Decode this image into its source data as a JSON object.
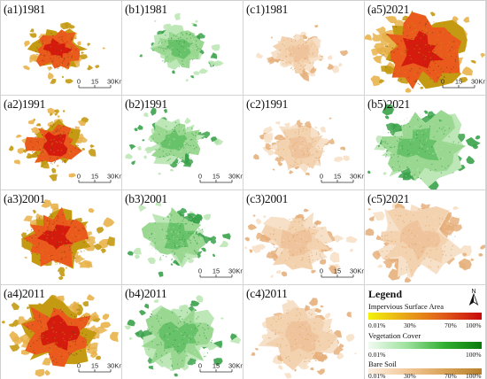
{
  "panels": [
    {
      "id": "a1",
      "label": "(a1)1981",
      "type": "impervious",
      "extent": 0.45,
      "seed": 11,
      "scalebar": true
    },
    {
      "id": "b1",
      "label": "(b1)1981",
      "type": "vegetation",
      "extent": 0.42,
      "seed": 12,
      "scalebar": false
    },
    {
      "id": "c1",
      "label": "(c1)1981",
      "type": "baresoil",
      "extent": 0.42,
      "seed": 13,
      "scalebar": false
    },
    {
      "id": "a5",
      "label": "(a5)2021",
      "type": "impervious",
      "extent": 1.0,
      "seed": 14,
      "scalebar": true
    },
    {
      "id": "a2",
      "label": "(a2)1991",
      "type": "impervious",
      "extent": 0.5,
      "seed": 21,
      "scalebar": true
    },
    {
      "id": "b2",
      "label": "(b2)1991",
      "type": "vegetation",
      "extent": 0.52,
      "seed": 22,
      "scalebar": true
    },
    {
      "id": "c2",
      "label": "(c2)1991",
      "type": "baresoil",
      "extent": 0.52,
      "seed": 23,
      "scalebar": true
    },
    {
      "id": "b5",
      "label": "(b5)2021",
      "type": "vegetation",
      "extent": 0.98,
      "seed": 24,
      "scalebar": false
    },
    {
      "id": "a3",
      "label": "(a3)2001",
      "type": "impervious",
      "extent": 0.72,
      "seed": 31,
      "scalebar": false
    },
    {
      "id": "b3",
      "label": "(b3)2001",
      "type": "vegetation",
      "extent": 0.68,
      "seed": 32,
      "scalebar": true
    },
    {
      "id": "c3",
      "label": "(c3)2001",
      "type": "baresoil",
      "extent": 0.7,
      "seed": 33,
      "scalebar": true
    },
    {
      "id": "c5",
      "label": "(c5)2021",
      "type": "baresoil",
      "extent": 0.98,
      "seed": 34,
      "scalebar": false
    },
    {
      "id": "a4",
      "label": "(a4)2011",
      "type": "impervious",
      "extent": 0.86,
      "seed": 41,
      "scalebar": true
    },
    {
      "id": "b4",
      "label": "(b4)2011",
      "type": "vegetation",
      "extent": 0.84,
      "seed": 42,
      "scalebar": true
    },
    {
      "id": "c4",
      "label": "(c4)2011",
      "type": "baresoil",
      "extent": 0.84,
      "seed": 43,
      "scalebar": false
    }
  ],
  "scalebar": {
    "ticks": [
      "0",
      "15",
      "30Km"
    ]
  },
  "legend": {
    "title": "Legend",
    "north": "N",
    "categories": [
      {
        "label": "Impervious Surface Area",
        "ramp": [
          "#f2f20a",
          "#e8a418",
          "#e05a1a",
          "#c80a0a"
        ],
        "ticks": [
          "0.01%",
          "30%",
          "70%",
          "100%"
        ]
      },
      {
        "label": "Vegetation Cover",
        "ramp": [
          "#f2fbf2",
          "#9fe29f",
          "#33b033",
          "#0a7a0a"
        ],
        "ticks": [
          "0.01%",
          "100%"
        ]
      },
      {
        "label": "Bare Soil",
        "ramp": [
          "#fbeee0",
          "#f3c99b",
          "#d9a35a",
          "#b7822e"
        ],
        "ticks": [
          "0.01%",
          "30%",
          "70%",
          "100%"
        ]
      }
    ]
  },
  "palettes": {
    "impervious": {
      "base": "#e95a1c",
      "core": "#d51a0e",
      "edge": "#c49a12",
      "fringe": "#e8b24a",
      "speck": "#7a3a12"
    },
    "vegetation": {
      "base": "#9ad892",
      "core": "#68c26a",
      "edge": "#bde7b6",
      "fringe": "#3aa24a",
      "speck": "#2a8f3a"
    },
    "baresoil": {
      "base": "#f3d2b0",
      "core": "#efc49c",
      "edge": "#f7e0c8",
      "fringe": "#e6b07c",
      "speck": "#d99a5a"
    }
  }
}
